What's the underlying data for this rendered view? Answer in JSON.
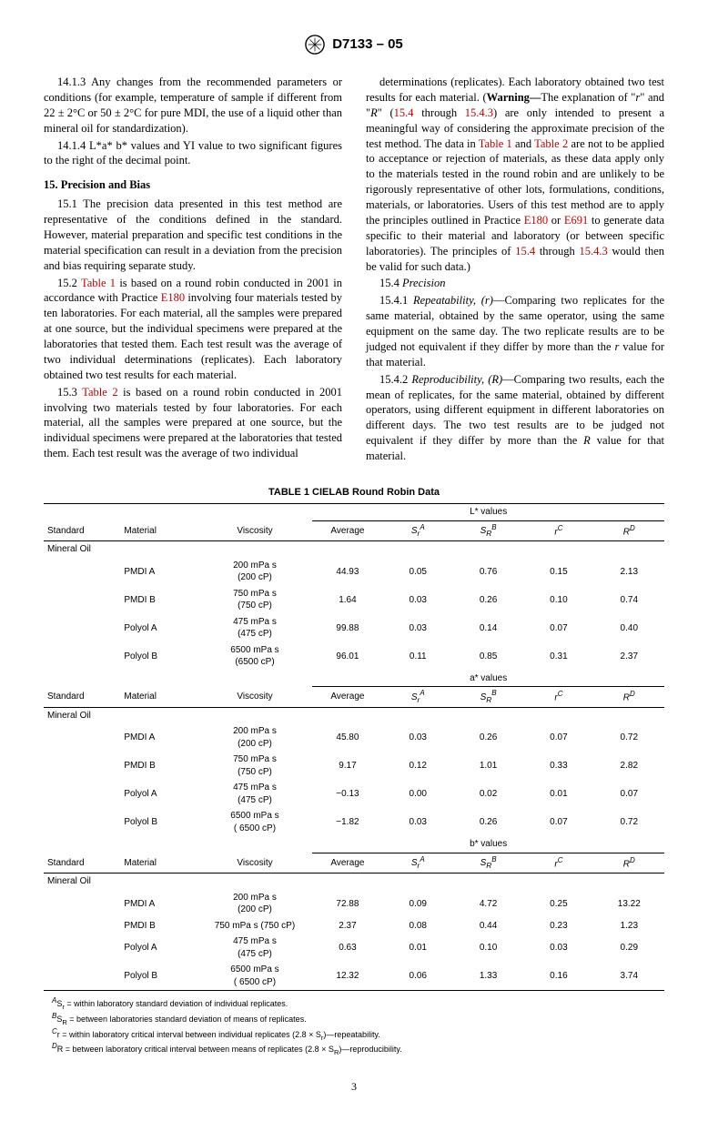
{
  "header": {
    "designation": "D7133 – 05"
  },
  "paragraphs": {
    "p14_1_3": "14.1.3 Any changes from the recommended parameters or conditions (for example, temperature of sample if different from 22 ± 2°C or 50 ± 2°C for pure MDI, the use of a liquid other than mineral oil for standardization).",
    "p14_1_4": "14.1.4 L*a* b* values and YI value to two significant figures to the right of the decimal point.",
    "sec15": "15. Precision and Bias",
    "p15_1": "15.1 The precision data presented in this test method are representative of the conditions defined in the standard. However, material preparation and specific test conditions in the material specification can result in a deviation from the precision and bias requiring separate study.",
    "p15_2_a": "15.2 ",
    "p15_2_b": " is based on a round robin conducted in 2001 in accordance with Practice ",
    "p15_2_c": " involving four materials tested by ten laboratories. For each material, all the samples were prepared at one source, but the individual specimens were prepared at the laboratories that tested them. Each test result was the average of two individual determinations (replicates). Each laboratory obtained two test results for each material.",
    "p15_3_a": "15.3 ",
    "p15_3_b": " is based on a round robin conducted in 2001 involving two materials tested by four laboratories. For each material, all the samples were prepared at one source, but the individual specimens were prepared at the laboratories that tested them. Each test result was the average of two individual",
    "p_col2_a": "determinations (replicates). Each laboratory obtained two test results for each material. (",
    "warn": "Warning—",
    "p_col2_b": "The explanation of \"",
    "r_it": "r",
    "p_col2_c": "\" and \"",
    "R_it": "R",
    "p_col2_d": "\" (",
    "p_col2_e": " through ",
    "p_col2_f": ") are only intended to present a meaningful way of considering the approximate precision of the test method. The data in ",
    "p_col2_g": " and ",
    "p_col2_h": " are not to be applied to acceptance or rejection of materials, as these data apply only to the materials tested in the round robin and are unlikely to be rigorously representative of other lots, formulations, conditions, materials, or laboratories. Users of this test method are to apply the principles outlined in Practice ",
    "p_col2_i": " or ",
    "p_col2_j": " to generate data specific to their material and laboratory (or between specific laboratories). The principles of ",
    "p_col2_k": " through ",
    "p_col2_l": " would then be valid for such data.)",
    "p15_4": "15.4 ",
    "precision": "Precision",
    "p15_4_1_a": "15.4.1 ",
    "rep_r": "Repeatability, (r)",
    "p15_4_1_b": "—Comparing two replicates for the same material, obtained by the same operator, using the same equipment on the same day. The two replicate results are to be judged not equivalent if they differ by more than the ",
    "p15_4_1_c": " value for that material.",
    "p15_4_2_a": "15.4.2 ",
    "rep_R": "Reproducibility, (R)",
    "p15_4_2_b": "—Comparing two results, each the mean of replicates, for the same material, obtained by different operators, using different equipment in different laboratories on different days. The two test results are to be judged not equivalent if they differ by more than the ",
    "p15_4_2_c": " value for that material."
  },
  "xrefs": {
    "table1": "Table 1",
    "table2": "Table 2",
    "e180": "E180",
    "e691": "E691",
    "s15_4": "15.4",
    "s15_4_3": "15.4.3"
  },
  "table": {
    "title": "TABLE 1  CIELAB Round Robin Data",
    "headers": {
      "standard": "Standard",
      "material": "Material",
      "viscosity": "Viscosity",
      "average": "Average",
      "sr": "S",
      "sr_sub": "r",
      "sr_sup": "A",
      "sR": "S",
      "sR_sub": "R",
      "sR_sup": "B",
      "r": "r",
      "r_sup": "C",
      "R": "R",
      "R_sup": "D"
    },
    "section_labels": {
      "L": "L* values",
      "a": "a* values",
      "b": "b* values"
    },
    "standard_label": "Mineral Oil",
    "sections": [
      {
        "key": "L",
        "rows": [
          {
            "material": "PMDI A",
            "visc": "200 mPa s",
            "visc2": "(200 cP)",
            "avg": "44.93",
            "sr": "0.05",
            "sR": "0.76",
            "r": "0.15",
            "R": "2.13"
          },
          {
            "material": "PMDI B",
            "visc": "750 mPa s",
            "visc2": "(750 cP)",
            "avg": "1.64",
            "sr": "0.03",
            "sR": "0.26",
            "r": "0.10",
            "R": "0.74"
          },
          {
            "material": "Polyol A",
            "visc": "475 mPa s",
            "visc2": "(475 cP)",
            "avg": "99.88",
            "sr": "0.03",
            "sR": "0.14",
            "r": "0.07",
            "R": "0.40"
          },
          {
            "material": "Polyol B",
            "visc": "6500 mPa s",
            "visc2": "(6500 cP)",
            "avg": "96.01",
            "sr": "0.11",
            "sR": "0.85",
            "r": "0.31",
            "R": "2.37"
          }
        ]
      },
      {
        "key": "a",
        "rows": [
          {
            "material": "PMDI A",
            "visc": "200 mPa s",
            "visc2": "(200 cP)",
            "avg": "45.80",
            "sr": "0.03",
            "sR": "0.26",
            "r": "0.07",
            "R": "0.72"
          },
          {
            "material": "PMDI B",
            "visc": "750 mPa s",
            "visc2": "(750 cP)",
            "avg": "9.17",
            "sr": "0.12",
            "sR": "1.01",
            "r": "0.33",
            "R": "2.82"
          },
          {
            "material": "Polyol A",
            "visc": "475 mPa s",
            "visc2": "(475 cP)",
            "avg": "−0.13",
            "sr": "0.00",
            "sR": "0.02",
            "r": "0.01",
            "R": "0.07"
          },
          {
            "material": "Polyol B",
            "visc": "6500 mPa s",
            "visc2": "( 6500 cP)",
            "avg": "−1.82",
            "sr": "0.03",
            "sR": "0.26",
            "r": "0.07",
            "R": "0.72"
          }
        ]
      },
      {
        "key": "b",
        "rows": [
          {
            "material": "PMDI A",
            "visc": "200 mPa s",
            "visc2": "(200 cP)",
            "avg": "72.88",
            "sr": "0.09",
            "sR": "4.72",
            "r": "0.25",
            "R": "13.22"
          },
          {
            "material": "PMDI B",
            "visc": "750 mPa s (750 cP)",
            "visc2": "",
            "avg": "2.37",
            "sr": "0.08",
            "sR": "0.44",
            "r": "0.23",
            "R": "1.23"
          },
          {
            "material": "Polyol A",
            "visc": "475 mPa s",
            "visc2": "(475 cP)",
            "avg": "0.63",
            "sr": "0.01",
            "sR": "0.10",
            "r": "0.03",
            "R": "0.29"
          },
          {
            "material": "Polyol B",
            "visc": "6500 mPa s",
            "visc2": "( 6500 cP)",
            "avg": "12.32",
            "sr": "0.06",
            "sR": "1.33",
            "r": "0.16",
            "R": "3.74"
          }
        ]
      }
    ],
    "footnotes": {
      "a": "S",
      "a_sub": "r",
      "a_txt": " = within laboratory standard deviation of individual replicates.",
      "b": "S",
      "b_sub": "R",
      "b_txt": " = between laboratories standard deviation of means of replicates.",
      "c": "r = within laboratory critical interval between individual replicates (2.8 × S",
      "c_sub": "r",
      "c_txt": ")—repeatability.",
      "d": "R = between laboratory critical interval between means of replicates (2.8 × S",
      "d_sub": "R",
      "d_txt": ")—reproducibility."
    }
  },
  "pagenum": "3",
  "style": {
    "link_color": "#c00000",
    "font_body": "Times New Roman",
    "font_sans": "Arial"
  }
}
